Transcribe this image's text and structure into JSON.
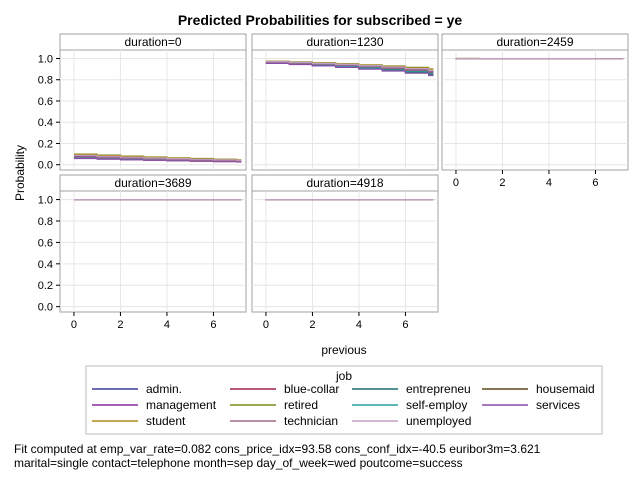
{
  "chart_data": {
    "type": "line",
    "title": "Predicted Probabilities for subscribed = ye",
    "xlabel": "previous",
    "ylabel": "Probability",
    "panel_variable": "duration",
    "panels": [
      {
        "label": "duration=0",
        "value": 0
      },
      {
        "label": "duration=1230",
        "value": 1230
      },
      {
        "label": "duration=2459",
        "value": 2459
      },
      {
        "label": "duration=3689",
        "value": 3689
      },
      {
        "label": "duration=4918",
        "value": 4918
      }
    ],
    "xlim": [
      -0.6,
      7.4
    ],
    "ylim": [
      -0.05,
      1.08
    ],
    "x_ticks": [
      0,
      2,
      4,
      6
    ],
    "y_ticks": [
      "0.0",
      "0.2",
      "0.4",
      "0.6",
      "0.8",
      "1.0"
    ],
    "grid": true,
    "x": [
      0,
      1,
      2,
      3,
      4,
      5,
      6,
      7
    ],
    "legend": {
      "title": "job",
      "position": "bottom",
      "entries": [
        {
          "name": "admin.",
          "color": "#3b3b9b"
        },
        {
          "name": "blue-collar",
          "color": "#a0204a"
        },
        {
          "name": "entrepreneu",
          "color": "#1f6f6f"
        },
        {
          "name": "housemaid",
          "color": "#5a4a1a"
        },
        {
          "name": "management",
          "color": "#8a2ca0"
        },
        {
          "name": "retired",
          "color": "#7a8a1a"
        },
        {
          "name": "self-employ",
          "color": "#2aa0a0"
        },
        {
          "name": "services",
          "color": "#8a4aaa"
        },
        {
          "name": "student",
          "color": "#b08a1a"
        },
        {
          "name": "technician",
          "color": "#a06a8a"
        },
        {
          "name": "unemployed",
          "color": "#c0a0c0"
        }
      ]
    },
    "series_by_panel": [
      [
        [
          0.072,
          0.065,
          0.058,
          0.052,
          0.046,
          0.041,
          0.036,
          0.032
        ],
        [
          0.06,
          0.054,
          0.048,
          0.043,
          0.038,
          0.034,
          0.03,
          0.026
        ],
        [
          0.064,
          0.057,
          0.051,
          0.046,
          0.041,
          0.036,
          0.032,
          0.028
        ],
        [
          0.068,
          0.061,
          0.055,
          0.049,
          0.044,
          0.039,
          0.034,
          0.03
        ],
        [
          0.08,
          0.072,
          0.064,
          0.058,
          0.052,
          0.046,
          0.041,
          0.036
        ],
        [
          0.1,
          0.09,
          0.081,
          0.072,
          0.065,
          0.058,
          0.052,
          0.046
        ],
        [
          0.066,
          0.059,
          0.053,
          0.047,
          0.042,
          0.037,
          0.033,
          0.029
        ],
        [
          0.058,
          0.052,
          0.046,
          0.041,
          0.037,
          0.033,
          0.029,
          0.025
        ],
        [
          0.095,
          0.086,
          0.077,
          0.069,
          0.062,
          0.055,
          0.049,
          0.044
        ],
        [
          0.074,
          0.067,
          0.06,
          0.054,
          0.048,
          0.043,
          0.038,
          0.034
        ],
        [
          0.088,
          0.079,
          0.071,
          0.064,
          0.057,
          0.051,
          0.046,
          0.041
        ]
      ],
      [
        [
          0.965,
          0.956,
          0.946,
          0.934,
          0.921,
          0.906,
          0.889,
          0.87
        ],
        [
          0.955,
          0.944,
          0.932,
          0.918,
          0.902,
          0.884,
          0.864,
          0.842
        ],
        [
          0.958,
          0.948,
          0.936,
          0.923,
          0.908,
          0.891,
          0.872,
          0.851
        ],
        [
          0.961,
          0.951,
          0.94,
          0.927,
          0.913,
          0.897,
          0.879,
          0.859
        ],
        [
          0.968,
          0.959,
          0.949,
          0.938,
          0.925,
          0.911,
          0.895,
          0.877
        ],
        [
          0.975,
          0.968,
          0.96,
          0.951,
          0.941,
          0.929,
          0.916,
          0.901
        ],
        [
          0.96,
          0.95,
          0.938,
          0.925,
          0.911,
          0.894,
          0.876,
          0.856
        ],
        [
          0.954,
          0.943,
          0.93,
          0.916,
          0.9,
          0.882,
          0.862,
          0.84
        ],
        [
          0.973,
          0.966,
          0.957,
          0.948,
          0.937,
          0.925,
          0.911,
          0.896
        ],
        [
          0.966,
          0.957,
          0.947,
          0.936,
          0.923,
          0.908,
          0.892,
          0.874
        ],
        [
          0.971,
          0.963,
          0.954,
          0.944,
          0.933,
          0.92,
          0.905,
          0.889
        ]
      ],
      [
        [
          0.999,
          0.999,
          0.999,
          0.999,
          0.999,
          0.998,
          0.998,
          0.998
        ],
        [
          0.999,
          0.999,
          0.999,
          0.999,
          0.998,
          0.998,
          0.998,
          0.997
        ],
        [
          0.999,
          0.999,
          0.999,
          0.999,
          0.998,
          0.998,
          0.998,
          0.997
        ],
        [
          0.999,
          0.999,
          0.999,
          0.999,
          0.999,
          0.998,
          0.998,
          0.998
        ],
        [
          0.999,
          0.999,
          0.999,
          0.999,
          0.999,
          0.998,
          0.998,
          0.998
        ],
        [
          1.0,
          0.999,
          0.999,
          0.999,
          0.999,
          0.999,
          0.999,
          0.998
        ],
        [
          0.999,
          0.999,
          0.999,
          0.999,
          0.998,
          0.998,
          0.998,
          0.997
        ],
        [
          0.999,
          0.999,
          0.999,
          0.999,
          0.998,
          0.998,
          0.998,
          0.997
        ],
        [
          1.0,
          0.999,
          0.999,
          0.999,
          0.999,
          0.999,
          0.999,
          0.998
        ],
        [
          0.999,
          0.999,
          0.999,
          0.999,
          0.999,
          0.998,
          0.998,
          0.998
        ],
        [
          0.999,
          0.999,
          0.999,
          0.999,
          0.999,
          0.999,
          0.998,
          0.998
        ]
      ],
      [
        [
          1.0,
          1.0,
          1.0,
          1.0,
          1.0,
          1.0,
          1.0,
          1.0
        ],
        [
          1.0,
          1.0,
          1.0,
          1.0,
          1.0,
          1.0,
          1.0,
          1.0
        ],
        [
          1.0,
          1.0,
          1.0,
          1.0,
          1.0,
          1.0,
          1.0,
          1.0
        ],
        [
          1.0,
          1.0,
          1.0,
          1.0,
          1.0,
          1.0,
          1.0,
          1.0
        ],
        [
          1.0,
          1.0,
          1.0,
          1.0,
          1.0,
          1.0,
          1.0,
          1.0
        ],
        [
          1.0,
          1.0,
          1.0,
          1.0,
          1.0,
          1.0,
          1.0,
          1.0
        ],
        [
          1.0,
          1.0,
          1.0,
          1.0,
          1.0,
          1.0,
          1.0,
          1.0
        ],
        [
          1.0,
          1.0,
          1.0,
          1.0,
          1.0,
          1.0,
          1.0,
          1.0
        ],
        [
          1.0,
          1.0,
          1.0,
          1.0,
          1.0,
          1.0,
          1.0,
          1.0
        ],
        [
          1.0,
          1.0,
          1.0,
          1.0,
          1.0,
          1.0,
          1.0,
          1.0
        ],
        [
          1.0,
          1.0,
          1.0,
          1.0,
          1.0,
          1.0,
          1.0,
          1.0
        ]
      ],
      [
        [
          1.0,
          1.0,
          1.0,
          1.0,
          1.0,
          1.0,
          1.0,
          1.0
        ],
        [
          1.0,
          1.0,
          1.0,
          1.0,
          1.0,
          1.0,
          1.0,
          1.0
        ],
        [
          1.0,
          1.0,
          1.0,
          1.0,
          1.0,
          1.0,
          1.0,
          1.0
        ],
        [
          1.0,
          1.0,
          1.0,
          1.0,
          1.0,
          1.0,
          1.0,
          1.0
        ],
        [
          1.0,
          1.0,
          1.0,
          1.0,
          1.0,
          1.0,
          1.0,
          1.0
        ],
        [
          1.0,
          1.0,
          1.0,
          1.0,
          1.0,
          1.0,
          1.0,
          1.0
        ],
        [
          1.0,
          1.0,
          1.0,
          1.0,
          1.0,
          1.0,
          1.0,
          1.0
        ],
        [
          1.0,
          1.0,
          1.0,
          1.0,
          1.0,
          1.0,
          1.0,
          1.0
        ],
        [
          1.0,
          1.0,
          1.0,
          1.0,
          1.0,
          1.0,
          1.0,
          1.0
        ],
        [
          1.0,
          1.0,
          1.0,
          1.0,
          1.0,
          1.0,
          1.0,
          1.0
        ],
        [
          1.0,
          1.0,
          1.0,
          1.0,
          1.0,
          1.0,
          1.0,
          1.0
        ]
      ]
    ],
    "footnote": [
      "Fit computed at emp_var_rate=0.082 cons_price_idx=93.58 cons_conf_idx=-40.5 euribor3m=3.621",
      "marital=single contact=telephone month=sep day_of_week=wed poutcome=success"
    ]
  }
}
